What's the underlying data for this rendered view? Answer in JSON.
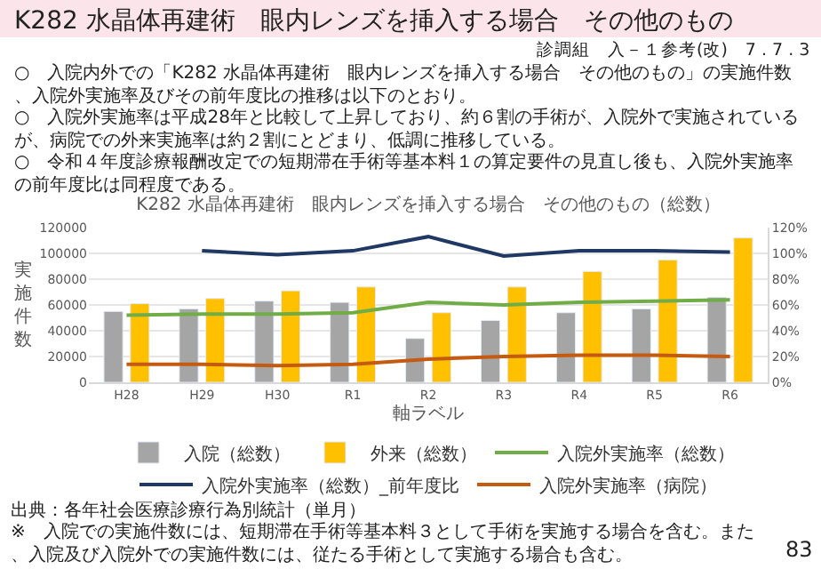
{
  "chart_data": {
    "type": "bar",
    "title": "K282 水晶体再建術　眼内レンズを挿入する場合　その他のもの（総数）",
    "xlabel": "軸ラベル",
    "ylabel": "実施件数",
    "categories": [
      "H28",
      "H29",
      "H30",
      "R1",
      "R2",
      "R3",
      "R4",
      "R5",
      "R6"
    ],
    "series": [
      {
        "name": "入院（総数）",
        "color": "#a5a5a5",
        "values": [
          55000,
          57000,
          63000,
          62000,
          34000,
          48000,
          54000,
          57000,
          66000
        ]
      },
      {
        "name": "外来（総数）",
        "color": "#ffc000",
        "values": [
          61000,
          65000,
          71000,
          74000,
          54000,
          74000,
          86000,
          95000,
          112000
        ]
      },
      {
        "name": "入院外実施率（総数）",
        "type": "line",
        "axis": "y2",
        "color": "#70ad47",
        "values": [
          52,
          53,
          53,
          54,
          62,
          60,
          62,
          63,
          64
        ]
      },
      {
        "name": "入院外実施率（総数）_前年度比",
        "type": "line",
        "axis": "y2",
        "color": "#203864",
        "values": [
          null,
          102,
          99,
          102,
          113,
          98,
          102,
          102,
          101
        ]
      },
      {
        "name": "入院外実施率（病院）",
        "type": "line",
        "axis": "y2",
        "color": "#c55a11",
        "values": [
          14,
          14,
          13,
          14,
          18,
          20,
          21,
          21,
          20
        ]
      }
    ],
    "ylim": [
      0,
      120000
    ],
    "yticks": [
      0,
      20000,
      40000,
      60000,
      80000,
      100000,
      120000
    ],
    "y2lim": [
      0,
      120
    ],
    "y2ticks": [
      {
        "value": 0,
        "label": "0%"
      },
      {
        "value": 20,
        "label": "20%"
      },
      {
        "value": 40,
        "label": "40%"
      },
      {
        "value": 60,
        "label": "60%"
      },
      {
        "value": 80,
        "label": "80%"
      },
      {
        "value": 100,
        "label": "100%"
      },
      {
        "value": 120,
        "label": "120%"
      }
    ],
    "grid": "y",
    "legend": "bottom",
    "marker": "none",
    "line_style": "solid",
    "annotations": [
      "K282 水晶体再建術　眼内レンズを挿入する場合　その他のもの",
      "診調組　入－１参考(改)　7 . 7 . 3",
      "○　入院内外での「K282 水晶体再建術　眼内レンズを挿入する場合　その他のもの」の実施件数、入院外実施率及びその前年度比の推移は以下のとおり。",
      "○　入院外実施率は平成28年と比較して上昇しており、約６割の手術が、入院外で実施されているが、病院での外来実施率は約２割にとどまり、低調に推移している。",
      "○　令和４年度診療報酬改定での短期滞在手術等基本料１の算定要件の見直し後も、入院外実施率の前年度比は同程度である。",
      "出典：各年社会医療診療行為別統計（単月）",
      "※　入院での実施件数には、短期滞在手術等基本料３として手術を実施する場合を含む。また、入院及び入院外での実施件数には、従たる手術として実施する場合も含む。",
      "83"
    ]
  }
}
